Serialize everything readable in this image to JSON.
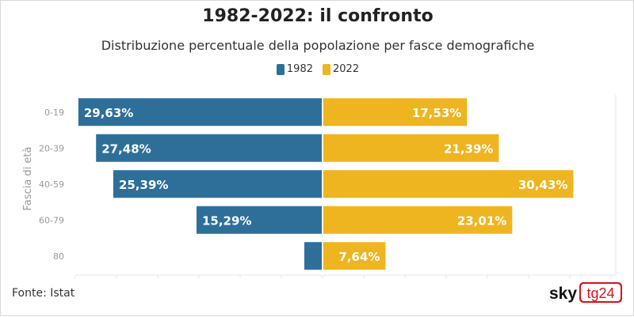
{
  "header": {
    "title": "1982-2022: il confronto",
    "subtitle": "Distribuzione percentuale della popolazione per fasce demografiche"
  },
  "legend": [
    {
      "label": "1982",
      "color": "#2e6f9a"
    },
    {
      "label": "2022",
      "color": "#efb521"
    }
  ],
  "chart_data": {
    "type": "bar",
    "orientation": "horizontal-diverging",
    "title": "1982-2022: il confronto",
    "subtitle": "Distribuzione percentuale della popolazione per fasce demografiche",
    "ylabel": "Fascia di età",
    "xlabel": "",
    "categories": [
      "0-19",
      "20-39",
      "40-59",
      "60-79",
      "80"
    ],
    "series": [
      {
        "name": "1982",
        "color": "#2e6f9a",
        "values": [
          29.63,
          27.48,
          25.39,
          15.29,
          2.21
        ],
        "labels": [
          "29,63%",
          "27,48%",
          "25,39%",
          "15,29%",
          ""
        ]
      },
      {
        "name": "2022",
        "color": "#efb521",
        "values": [
          17.53,
          21.39,
          30.43,
          23.01,
          7.64
        ],
        "labels": [
          "17,53%",
          "21,39%",
          "30,43%",
          "23,01%",
          "7,64%"
        ]
      }
    ],
    "xlim": [
      -30,
      30
    ],
    "legend_position": "top-center",
    "grid": false
  },
  "footer": {
    "source": "Fonte: Istat",
    "logo_left": "sky",
    "logo_right": "tg24"
  }
}
